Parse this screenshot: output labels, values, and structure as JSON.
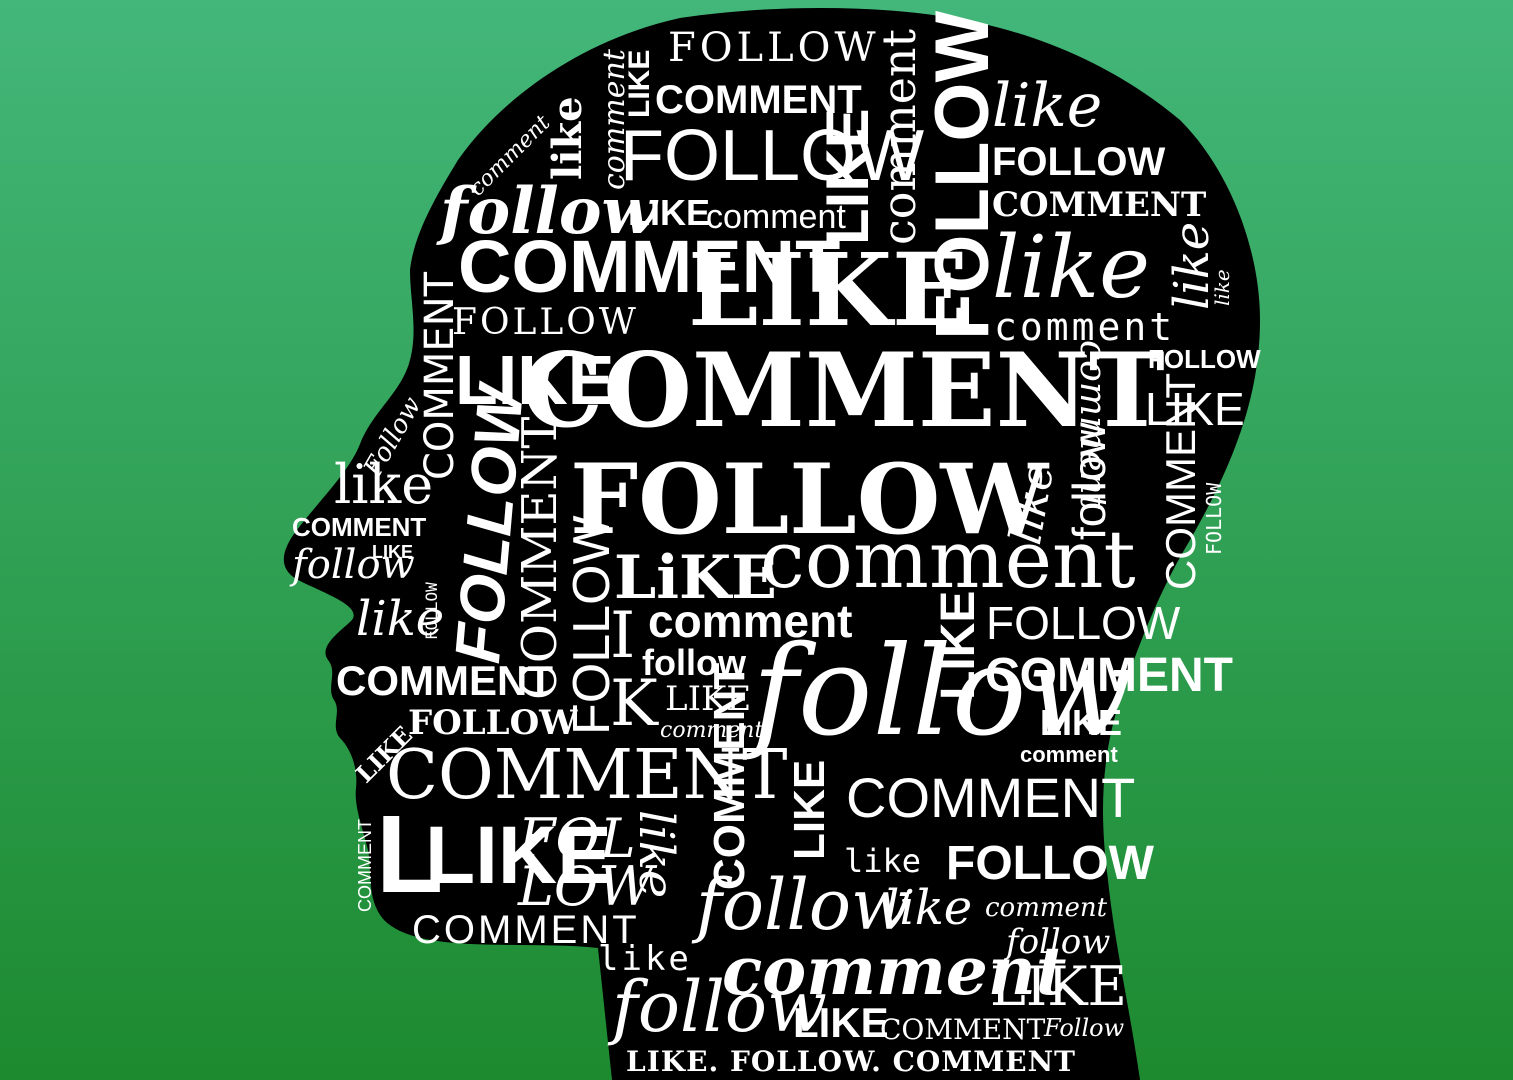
{
  "colors": {
    "background_top": "#43b77a",
    "background_bottom": "#1d8a2f",
    "head": "#000000",
    "text": "#ffffff"
  },
  "words": {
    "follow": "FOLLOW",
    "follow_lower": "follow",
    "follow_title": "Follow",
    "like": "LIKE",
    "like_lower": "like",
    "like_mixed": "LiKE",
    "comment": "COMMENT",
    "comment_lower": "comment",
    "fol": "FOL",
    "low": "LOW",
    "follo": "FOLLO",
    "w": "W",
    "i": "I",
    "k": "K",
    "l": "L",
    "tagline": "LIKE. FOLLOW. COMMENT"
  }
}
